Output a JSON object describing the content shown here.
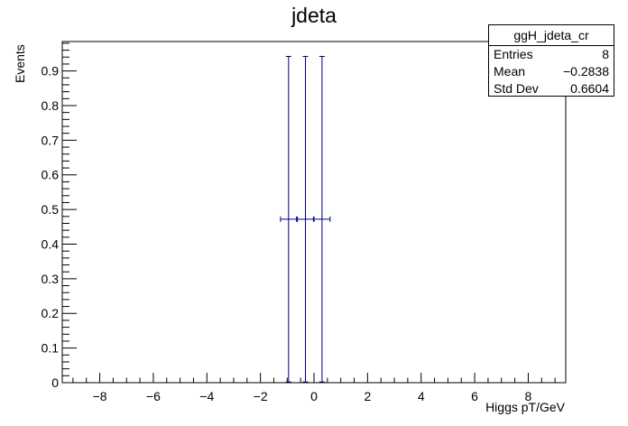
{
  "chart_data": {
    "type": "histogram",
    "title": "jdeta",
    "xlabel": "Higgs pT/GeV",
    "ylabel": "Events",
    "xlim": [
      -9.4,
      9.4
    ],
    "ylim": [
      0,
      0.985
    ],
    "x_ticks": [
      -8,
      -6,
      -4,
      -2,
      0,
      2,
      4,
      6,
      8
    ],
    "x_tick_labels": [
      "−8",
      "−6",
      "−4",
      "−2",
      "0",
      "2",
      "4",
      "6",
      "8"
    ],
    "y_ticks": [
      0,
      0.1,
      0.2,
      0.3,
      0.4,
      0.5,
      0.6,
      0.7,
      0.8,
      0.9
    ],
    "y_tick_labels": [
      "0",
      "0.1",
      "0.2",
      "0.3",
      "0.4",
      "0.5",
      "0.6",
      "0.7",
      "0.8",
      "0.9"
    ],
    "series": [
      {
        "points": [
          {
            "x": -0.95,
            "y": 0.472,
            "xerr": 0.3,
            "yerr": 0.47
          },
          {
            "x": -0.32,
            "y": 0.472,
            "xerr": 0.3,
            "yerr": 0.47
          },
          {
            "x": 0.3,
            "y": 0.472,
            "xerr": 0.3,
            "yerr": 0.47
          }
        ],
        "color": "#000080"
      }
    ],
    "grid": false,
    "stats_box": {
      "name": "ggH_jdeta_cr",
      "rows": [
        {
          "label": "Entries",
          "value": "8"
        },
        {
          "label": "Mean",
          "value": "−0.2838"
        },
        {
          "label": "Std Dev",
          "value": "0.6604"
        }
      ],
      "placement": "top-right"
    }
  }
}
